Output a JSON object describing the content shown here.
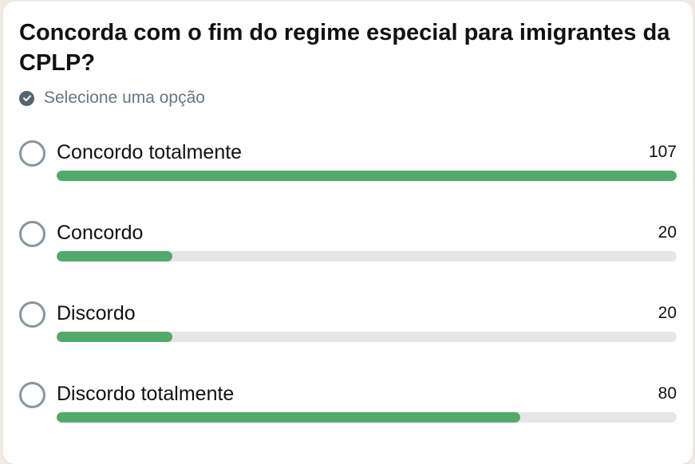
{
  "poll": {
    "question": "Concorda com o fim do regime especial para imigrantes da CPLP?",
    "hint": "Selecione uma opção",
    "hint_icon": "check-circle-icon",
    "bar_color": "#53a96b",
    "track_color": "#e6e6e6",
    "options": [
      {
        "label": "Concordo totalmente",
        "count": "107",
        "fraction": 1.0
      },
      {
        "label": "Concordo",
        "count": "20",
        "fraction": 0.187
      },
      {
        "label": "Discordo",
        "count": "20",
        "fraction": 0.187
      },
      {
        "label": "Discordo totalmente",
        "count": "80",
        "fraction": 0.748
      }
    ]
  }
}
